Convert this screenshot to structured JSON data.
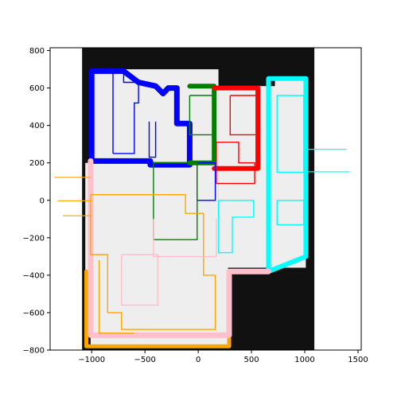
{
  "chart_data": {
    "type": "map",
    "title": "",
    "xlabel": "",
    "ylabel": "",
    "xlim": [
      -1390,
      1530
    ],
    "ylim": [
      -800,
      815
    ],
    "grid": false,
    "legend": "none",
    "x_ticks": [
      -1000,
      -500,
      0,
      500,
      1000,
      1500
    ],
    "x_tick_labels": [
      "−1000",
      "−500",
      "0",
      "500",
      "1000",
      "1500"
    ],
    "y_ticks": [
      800,
      600,
      400,
      200,
      0,
      -200,
      -400,
      -600,
      -800
    ],
    "y_tick_labels": [
      "800",
      "600",
      "400",
      "200",
      "0",
      "−200",
      "−400",
      "−600",
      "−800"
    ],
    "colors": {
      "background": "#111111",
      "free": "#eeeeee",
      "blue": "#0000ff",
      "green": "#008000",
      "red": "#ff0000",
      "cyan": "#00ffff",
      "orange": "#ffa500",
      "pink": "#ffc0cb"
    },
    "map_extent": {
      "x": [
        -1090,
        1090
      ],
      "y": [
        -800,
        815
      ]
    },
    "free_regions": [
      {
        "x": [
          -1010,
          190
        ],
        "y": [
          -780,
          700
        ]
      },
      {
        "x": [
          -500,
          280
        ],
        "y": [
          -780,
          -180
        ]
      },
      {
        "x": [
          190,
          760
        ],
        "y": [
          -360,
          610
        ]
      },
      {
        "x": [
          720,
          1010
        ],
        "y": [
          -360,
          650
        ]
      },
      {
        "x": [
          -1060,
          -1000
        ],
        "y": [
          -380,
          200
        ]
      }
    ],
    "regions": [
      {
        "name": "blue",
        "outline": [
          [
            -1000,
            690
          ],
          [
            -700,
            690
          ],
          [
            -560,
            630
          ],
          [
            -400,
            610
          ],
          [
            -330,
            570
          ],
          [
            -280,
            600
          ],
          [
            -200,
            600
          ],
          [
            -200,
            410
          ],
          [
            -80,
            410
          ],
          [
            -80,
            190
          ],
          [
            -450,
            190
          ],
          [
            -450,
            210
          ],
          [
            -1000,
            210
          ],
          [
            -1000,
            690
          ]
        ],
        "stroke_width": 7
      },
      {
        "name": "green",
        "outline": [
          [
            -80,
            610
          ],
          [
            150,
            610
          ],
          [
            150,
            200
          ],
          [
            -80,
            200
          ]
        ],
        "stroke_width": 6
      },
      {
        "name": "red",
        "outline": [
          [
            150,
            600
          ],
          [
            560,
            600
          ],
          [
            560,
            170
          ],
          [
            150,
            170
          ]
        ],
        "stroke_width": 6
      },
      {
        "name": "cyan",
        "outline": [
          [
            660,
            650
          ],
          [
            1010,
            650
          ],
          [
            1010,
            -300
          ],
          [
            660,
            -380
          ],
          [
            660,
            650
          ]
        ],
        "stroke_width": 6
      },
      {
        "name": "orange",
        "outline": [
          [
            -1050,
            -380
          ],
          [
            -1050,
            -780
          ],
          [
            290,
            -780
          ],
          [
            290,
            -720
          ],
          [
            -1050,
            -720
          ]
        ],
        "stroke_width": 5
      },
      {
        "name": "pink",
        "outline": [
          [
            -1010,
            210
          ],
          [
            -1010,
            -720
          ],
          [
            290,
            -720
          ],
          [
            290,
            -380
          ],
          [
            660,
            -380
          ]
        ],
        "stroke_width": 7
      }
    ],
    "protrusions": [
      {
        "color": "orange",
        "x": [
          -1320,
          -1000
        ],
        "y": [
          -5,
          0
        ]
      },
      {
        "color": "orange",
        "x": [
          -1270,
          -1000
        ],
        "y": [
          -85,
          -80
        ]
      },
      {
        "color": "orange",
        "x": [
          -1350,
          -1010
        ],
        "y": [
          120,
          125
        ]
      },
      {
        "color": "cyan",
        "x": [
          1010,
          1390
        ],
        "y": [
          270,
          275
        ]
      },
      {
        "color": "cyan",
        "x": [
          1010,
          1420
        ],
        "y": [
          150,
          155
        ]
      }
    ],
    "boxes": [
      {
        "color": "blue",
        "points": [
          [
            -800,
            250
          ],
          [
            -800,
            690
          ],
          [
            -700,
            690
          ],
          [
            -700,
            630
          ],
          [
            -560,
            630
          ],
          [
            -560,
            520
          ],
          [
            -600,
            520
          ],
          [
            -600,
            250
          ],
          [
            -800,
            250
          ]
        ]
      },
      {
        "color": "blue",
        "points": [
          [
            -460,
            420
          ],
          [
            -460,
            230
          ],
          [
            -400,
            230
          ],
          [
            -400,
            420
          ]
        ]
      },
      {
        "color": "blue",
        "points": [
          [
            -400,
            200
          ],
          [
            160,
            200
          ],
          [
            160,
            0
          ],
          [
            -10,
            0
          ],
          [
            -10,
            200
          ]
        ]
      },
      {
        "color": "green",
        "points": [
          [
            -80,
            560
          ],
          [
            160,
            560
          ],
          [
            160,
            350
          ],
          [
            -80,
            350
          ],
          [
            -80,
            560
          ]
        ]
      },
      {
        "color": "green",
        "points": [
          [
            -420,
            200
          ],
          [
            -10,
            200
          ],
          [
            -10,
            -210
          ],
          [
            -420,
            -210
          ],
          [
            -420,
            200
          ]
        ]
      },
      {
        "color": "red",
        "points": [
          [
            300,
            560
          ],
          [
            560,
            560
          ],
          [
            560,
            350
          ],
          [
            300,
            350
          ],
          [
            300,
            560
          ]
        ]
      },
      {
        "color": "red",
        "points": [
          [
            170,
            90
          ],
          [
            530,
            90
          ],
          [
            530,
            200
          ],
          [
            380,
            200
          ],
          [
            380,
            310
          ],
          [
            170,
            310
          ],
          [
            170,
            90
          ]
        ]
      },
      {
        "color": "cyan",
        "points": [
          [
            740,
            560
          ],
          [
            990,
            560
          ],
          [
            990,
            150
          ],
          [
            740,
            150
          ],
          [
            740,
            560
          ]
        ]
      },
      {
        "color": "cyan",
        "points": [
          [
            740,
            0
          ],
          [
            990,
            0
          ],
          [
            990,
            -130
          ],
          [
            740,
            -130
          ],
          [
            740,
            0
          ]
        ]
      },
      {
        "color": "cyan",
        "points": [
          [
            190,
            0
          ],
          [
            520,
            0
          ],
          [
            520,
            -90
          ],
          [
            320,
            -90
          ],
          [
            320,
            -280
          ],
          [
            190,
            -280
          ],
          [
            190,
            0
          ]
        ]
      },
      {
        "color": "orange",
        "points": [
          [
            -1010,
            30
          ],
          [
            -120,
            30
          ],
          [
            -120,
            -70
          ],
          [
            50,
            -70
          ],
          [
            50,
            -400
          ],
          [
            160,
            -400
          ],
          [
            160,
            -690
          ],
          [
            -720,
            -690
          ],
          [
            -720,
            -600
          ],
          [
            -850,
            -600
          ],
          [
            -850,
            -290
          ],
          [
            -1010,
            -290
          ],
          [
            -1010,
            30
          ]
        ]
      },
      {
        "color": "orange",
        "points": [
          [
            -930,
            -320
          ],
          [
            -930,
            -710
          ],
          [
            -600,
            -710
          ]
        ]
      },
      {
        "color": "pink",
        "points": [
          [
            -720,
            -290
          ],
          [
            -720,
            -560
          ],
          [
            -380,
            -560
          ],
          [
            -380,
            -290
          ],
          [
            -720,
            -290
          ]
        ]
      },
      {
        "color": "pink",
        "points": [
          [
            -420,
            -100
          ],
          [
            -420,
            -300
          ],
          [
            170,
            -300
          ],
          [
            170,
            -100
          ]
        ]
      }
    ]
  }
}
